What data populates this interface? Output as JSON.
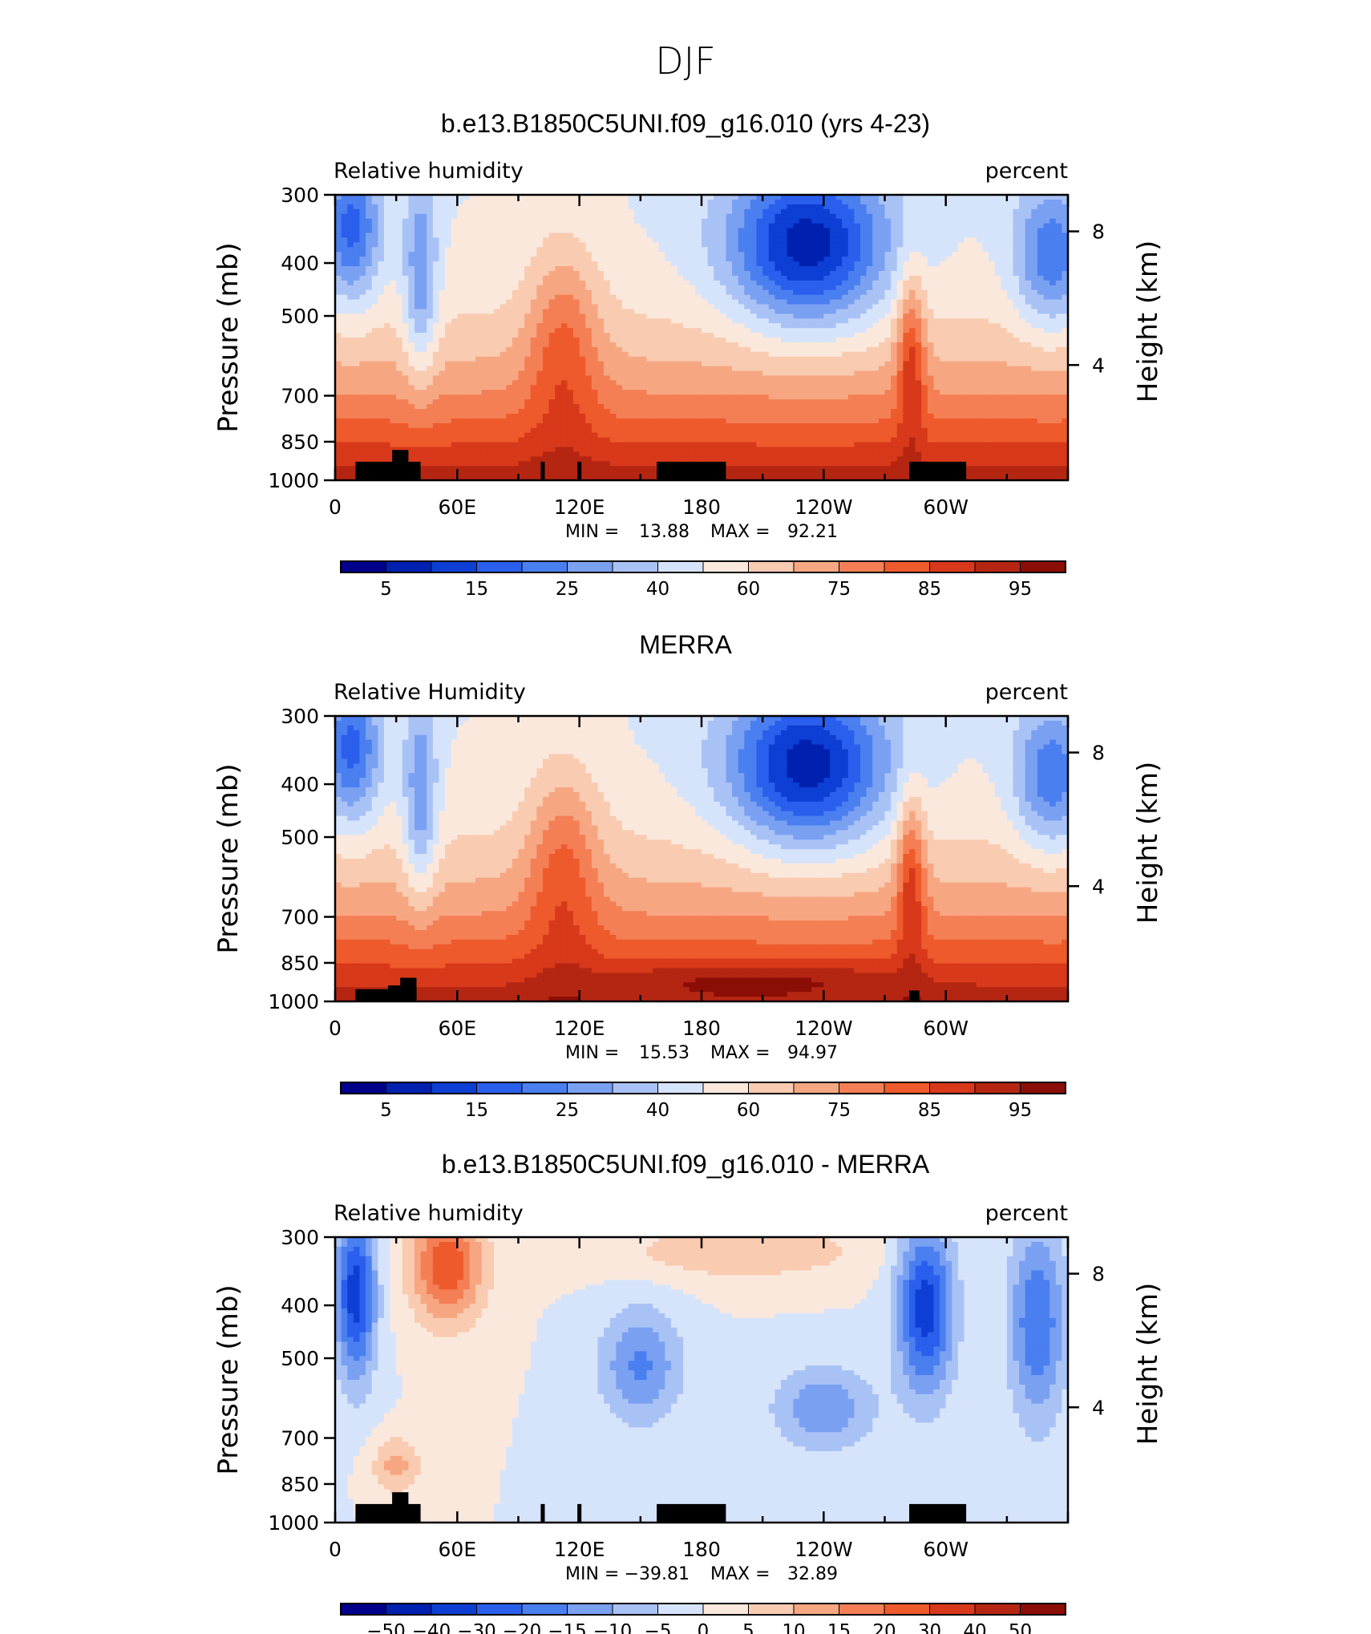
{
  "page_title": "DJF",
  "colors": {
    "rh_levels": [
      "#00008b",
      "#0020b0",
      "#0d3fd4",
      "#2a5fee",
      "#4a7ff0",
      "#7aa0f2",
      "#a9c2f6",
      "#d6e4fb",
      "#fbe8dc",
      "#f9cbb1",
      "#f6a782",
      "#f47f55",
      "#ef5a2c",
      "#d8391a",
      "#b52612",
      "#8b0e06"
    ],
    "diff_levels": [
      "#00008b",
      "#0020b0",
      "#0d3fd4",
      "#2a5fee",
      "#4a7ff0",
      "#7aa0f2",
      "#a9c2f6",
      "#d6e4fb",
      "#fbe8dc",
      "#f9cbb1",
      "#f6a782",
      "#f47f55",
      "#ef5a2c",
      "#d8391a",
      "#b52612",
      "#8b0e06"
    ],
    "topography": "#000000"
  },
  "chart_data": [
    {
      "type": "heatmap",
      "title": "b.e13.B1850C5UNI.f09_g16.010 (yrs 4-23)",
      "left_label": "Relative humidity",
      "right_label": "percent",
      "ylabel": "Pressure (mb)",
      "ylabel_right": "Height (km)",
      "x_ticks": [
        "0",
        "60E",
        "120E",
        "180",
        "120W",
        "60W"
      ],
      "y_ticks": [
        "300",
        "400",
        "500",
        "700",
        "850",
        "1000"
      ],
      "y2_ticks": [
        "8",
        "4"
      ],
      "stats": {
        "min_label": "MIN =",
        "min": "13.88",
        "max_label": "MAX =",
        "max": "92.21"
      },
      "colorbar_ticks": [
        "5",
        "15",
        "25",
        "40",
        "60",
        "75",
        "85",
        "95"
      ],
      "xlim": [
        0,
        360
      ],
      "ylim": [
        1000,
        300
      ]
    },
    {
      "type": "heatmap",
      "title": "MERRA",
      "left_label": "Relative Humidity",
      "right_label": "percent",
      "ylabel": "Pressure (mb)",
      "ylabel_right": "Height (km)",
      "x_ticks": [
        "0",
        "60E",
        "120E",
        "180",
        "120W",
        "60W"
      ],
      "y_ticks": [
        "300",
        "400",
        "500",
        "700",
        "850",
        "1000"
      ],
      "y2_ticks": [
        "8",
        "4"
      ],
      "stats": {
        "min_label": "MIN =",
        "min": "15.53",
        "max_label": "MAX =",
        "max": "94.97"
      },
      "colorbar_ticks": [
        "5",
        "15",
        "25",
        "40",
        "60",
        "75",
        "85",
        "95"
      ],
      "xlim": [
        0,
        360
      ],
      "ylim": [
        1000,
        300
      ]
    },
    {
      "type": "heatmap",
      "title": "b.e13.B1850C5UNI.f09_g16.010 - MERRA",
      "left_label": "Relative humidity",
      "right_label": "percent",
      "ylabel": "Pressure (mb)",
      "ylabel_right": "Height (km)",
      "x_ticks": [
        "0",
        "60E",
        "120E",
        "180",
        "120W",
        "60W"
      ],
      "y_ticks": [
        "300",
        "400",
        "500",
        "700",
        "850",
        "1000"
      ],
      "y2_ticks": [
        "8",
        "4"
      ],
      "stats": {
        "min_label": "MIN =",
        "min": "−39.81",
        "max_label": "MAX =",
        "max": "32.89"
      },
      "colorbar_ticks": [
        "−50",
        "−40",
        "−30",
        "−20",
        "−15",
        "−10",
        "−5",
        "0",
        "5",
        "10",
        "15",
        "20",
        "30",
        "40",
        "50"
      ],
      "xlim": [
        0,
        360
      ],
      "ylim": [
        1000,
        300
      ]
    }
  ]
}
